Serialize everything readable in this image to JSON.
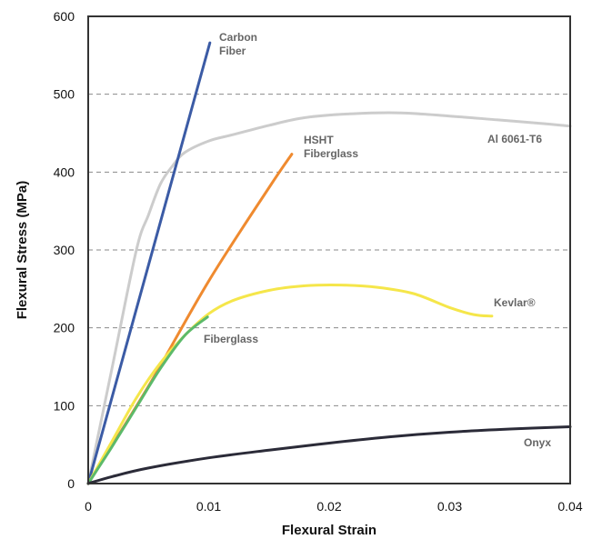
{
  "chart_data": {
    "type": "line",
    "title": "",
    "xlabel": "Flexural Strain",
    "ylabel": "Flexural Stress (MPa)",
    "xlim": [
      0,
      0.04
    ],
    "ylim": [
      0,
      600
    ],
    "x_ticks": [
      "0",
      "0.01",
      "0.02",
      "0.03",
      "0.04"
    ],
    "y_ticks": [
      "0",
      "100",
      "200",
      "300",
      "400",
      "500",
      "600"
    ],
    "grid": "horizontal dashed",
    "series": [
      {
        "name": "Al 6061-T6",
        "label_lines": [
          "Al 6061-T6"
        ],
        "color": "#cccccc",
        "points": [
          [
            0,
            0
          ],
          [
            0.002,
            150
          ],
          [
            0.004,
            300
          ],
          [
            0.005,
            345
          ],
          [
            0.006,
            385
          ],
          [
            0.007,
            408
          ],
          [
            0.008,
            425
          ],
          [
            0.01,
            440
          ],
          [
            0.012,
            448
          ],
          [
            0.015,
            460
          ],
          [
            0.018,
            470
          ],
          [
            0.022,
            475
          ],
          [
            0.026,
            476
          ],
          [
            0.03,
            472
          ],
          [
            0.034,
            467
          ],
          [
            0.038,
            462
          ],
          [
            0.04,
            459
          ]
        ]
      },
      {
        "name": "Carbon Fiber",
        "label_lines": [
          "Carbon",
          "Fiber"
        ],
        "color": "#3b5ba5",
        "points": [
          [
            0,
            0
          ],
          [
            0.0101,
            566
          ]
        ]
      },
      {
        "name": "HSHT Fiberglass",
        "label_lines": [
          "HSHT",
          "Fiberglass"
        ],
        "color": "#ef8a2f",
        "points": [
          [
            0,
            0
          ],
          [
            0.005,
            125
          ],
          [
            0.01,
            260
          ],
          [
            0.015,
            380
          ],
          [
            0.0169,
            423
          ]
        ]
      },
      {
        "name": "Kevlar®",
        "label_lines": [
          "Kevlar®"
        ],
        "color": "#f5e64a",
        "points": [
          [
            0,
            0
          ],
          [
            0.002,
            55
          ],
          [
            0.004,
            110
          ],
          [
            0.006,
            155
          ],
          [
            0.008,
            190
          ],
          [
            0.01,
            218
          ],
          [
            0.012,
            235
          ],
          [
            0.015,
            248
          ],
          [
            0.018,
            254
          ],
          [
            0.021,
            255
          ],
          [
            0.024,
            252
          ],
          [
            0.027,
            244
          ],
          [
            0.03,
            226
          ],
          [
            0.032,
            217
          ],
          [
            0.0335,
            215
          ]
        ]
      },
      {
        "name": "Fiberglass",
        "label_lines": [
          "Fiberglass"
        ],
        "color": "#5cba6a",
        "points": [
          [
            0,
            0
          ],
          [
            0.002,
            48
          ],
          [
            0.004,
            98
          ],
          [
            0.006,
            148
          ],
          [
            0.008,
            190
          ],
          [
            0.0099,
            214
          ]
        ]
      },
      {
        "name": "Onyx",
        "label_lines": [
          "Onyx"
        ],
        "color": "#2b2b38",
        "points": [
          [
            0,
            0
          ],
          [
            0.002,
            9
          ],
          [
            0.005,
            20
          ],
          [
            0.01,
            33
          ],
          [
            0.015,
            43
          ],
          [
            0.02,
            52
          ],
          [
            0.025,
            60
          ],
          [
            0.03,
            66
          ],
          [
            0.035,
            70
          ],
          [
            0.04,
            73
          ]
        ]
      }
    ]
  }
}
